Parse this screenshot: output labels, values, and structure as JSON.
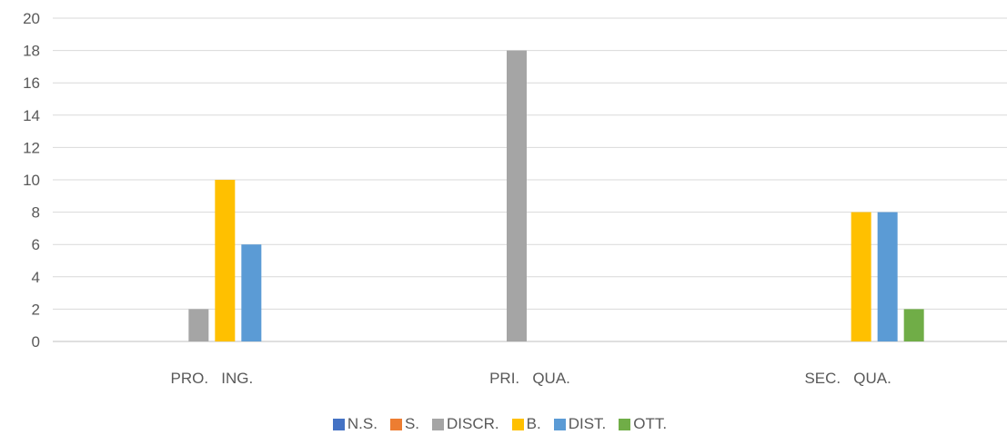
{
  "chart_data": {
    "type": "bar",
    "categories": [
      "PRO.   ING.",
      "PRI.   QUA.",
      "SEC.   QUA."
    ],
    "series": [
      {
        "name": "N.S.",
        "color": "#4472C4",
        "values": [
          0,
          0,
          0
        ]
      },
      {
        "name": "S.",
        "color": "#ED7D31",
        "values": [
          0,
          0,
          0
        ]
      },
      {
        "name": "DISCR.",
        "color": "#A5A5A5",
        "values": [
          2,
          18,
          0
        ]
      },
      {
        "name": "B.",
        "color": "#FFC000",
        "values": [
          10,
          0,
          8
        ]
      },
      {
        "name": "DIST.",
        "color": "#5B9BD5",
        "values": [
          6,
          0,
          8
        ]
      },
      {
        "name": "OTT.",
        "color": "#70AD47",
        "values": [
          0,
          0,
          2
        ]
      }
    ],
    "yticks": [
      "0",
      "2",
      "4",
      "6",
      "8",
      "10",
      "12",
      "14",
      "16",
      "18",
      "20"
    ],
    "ylim": [
      0,
      20
    ],
    "grid": true,
    "legend": "bottom"
  }
}
